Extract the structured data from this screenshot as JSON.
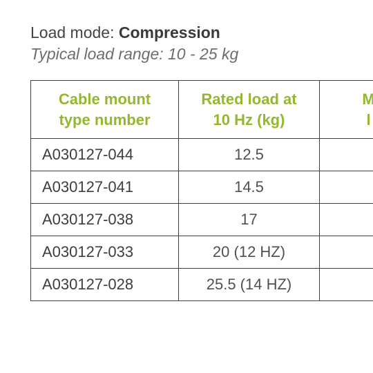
{
  "heading": {
    "prefix": "Load mode: ",
    "mode": "Compression",
    "subtitle": "Typical load range: 10 - 25 kg"
  },
  "table": {
    "columns": [
      {
        "label_line1": "Cable mount",
        "label_line2": "type number"
      },
      {
        "label_line1": "Rated load at",
        "label_line2": "10 Hz (kg)"
      },
      {
        "label_line1": "M",
        "label_line2": "l"
      }
    ],
    "rows": [
      {
        "type": "A030127-044",
        "rated": "12.5"
      },
      {
        "type": "A030127-041",
        "rated": "14.5"
      },
      {
        "type": "A030127-038",
        "rated": "17"
      },
      {
        "type": "A030127-033",
        "rated": "20 (12 HZ)"
      },
      {
        "type": "A030127-028",
        "rated": "25.5 (14 HZ)"
      }
    ],
    "colors": {
      "header_text": "#94b72f",
      "border": "#3d3d3d",
      "body_text": "#3d3d3d"
    }
  }
}
